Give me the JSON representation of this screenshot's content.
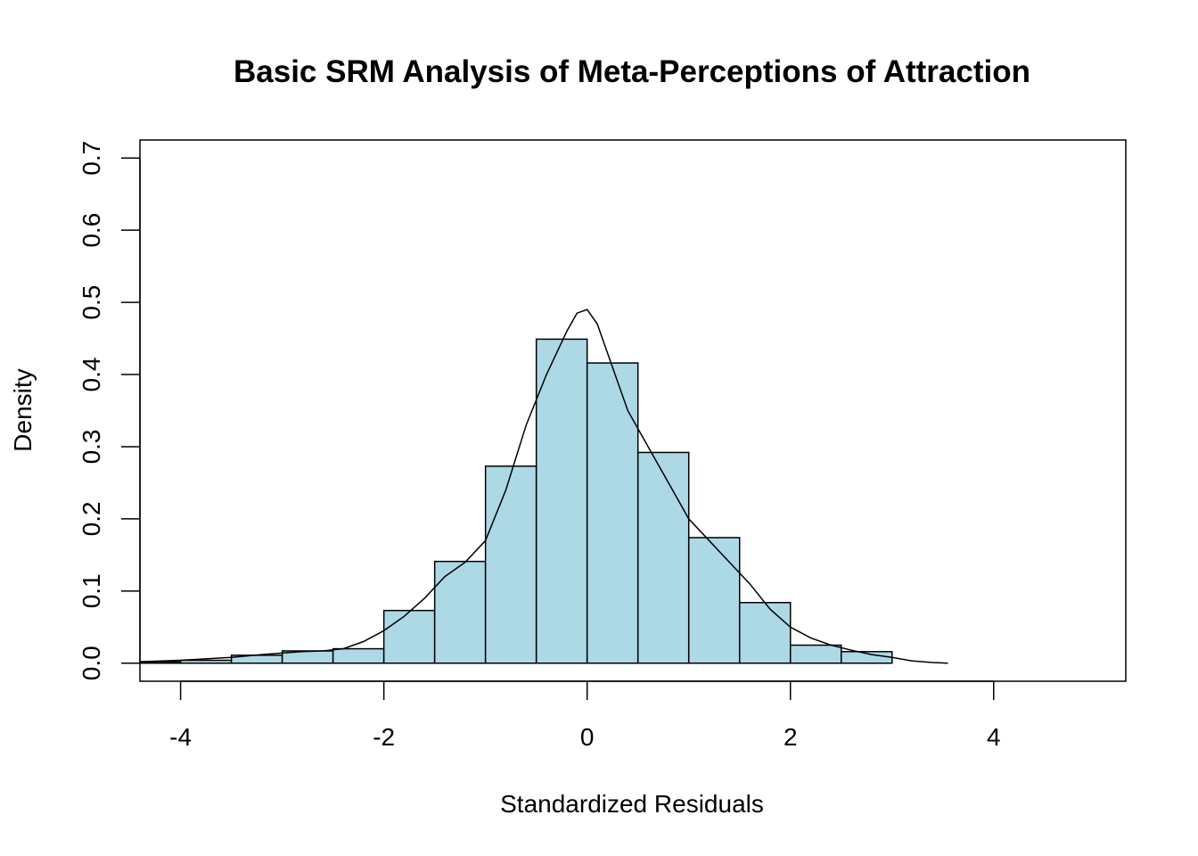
{
  "chart_data": {
    "type": "bar",
    "title": "Basic SRM Analysis of Meta-Perceptions of Attraction",
    "xlabel": "Standardized Residuals",
    "ylabel": "Density",
    "xlim": [
      -4.4,
      5.3
    ],
    "ylim": [
      -0.025,
      0.725
    ],
    "x_ticks": [
      -4,
      -2,
      0,
      2,
      4
    ],
    "x_tick_labels": [
      "-4",
      "-2",
      "0",
      "2",
      "4"
    ],
    "y_ticks": [
      0.0,
      0.1,
      0.2,
      0.3,
      0.4,
      0.5,
      0.6,
      0.7
    ],
    "y_tick_labels": [
      "0.0",
      "0.1",
      "0.2",
      "0.3",
      "0.4",
      "0.5",
      "0.6",
      "0.7"
    ],
    "bin_edges": [
      -4.5,
      -4.0,
      -3.5,
      -3.0,
      -2.5,
      -2.0,
      -1.5,
      -1.0,
      -0.5,
      0.0,
      0.5,
      1.0,
      1.5,
      2.0,
      2.5,
      3.0
    ],
    "values": [
      0.002,
      0.004,
      0.011,
      0.017,
      0.02,
      0.073,
      0.141,
      0.273,
      0.449,
      0.416,
      0.292,
      0.174,
      0.084,
      0.025,
      0.016
    ],
    "bar_fill": "#add8e6",
    "bar_stroke": "#000000",
    "density_curve": {
      "x": [
        -4.4,
        -4.0,
        -3.5,
        -3.2,
        -3.0,
        -2.8,
        -2.6,
        -2.4,
        -2.2,
        -2.0,
        -1.8,
        -1.6,
        -1.4,
        -1.2,
        -1.0,
        -0.8,
        -0.6,
        -0.4,
        -0.2,
        -0.1,
        0.0,
        0.1,
        0.2,
        0.4,
        0.6,
        0.8,
        1.0,
        1.2,
        1.4,
        1.6,
        1.8,
        2.0,
        2.2,
        2.4,
        2.6,
        2.8,
        3.0,
        3.2,
        3.4,
        3.55
      ],
      "y": [
        0.002,
        0.004,
        0.008,
        0.012,
        0.014,
        0.016,
        0.017,
        0.02,
        0.03,
        0.045,
        0.065,
        0.09,
        0.12,
        0.14,
        0.17,
        0.24,
        0.33,
        0.4,
        0.46,
        0.485,
        0.49,
        0.47,
        0.43,
        0.35,
        0.3,
        0.25,
        0.2,
        0.17,
        0.14,
        0.11,
        0.075,
        0.05,
        0.035,
        0.025,
        0.018,
        0.012,
        0.008,
        0.003,
        0.001,
        0.0
      ]
    }
  }
}
